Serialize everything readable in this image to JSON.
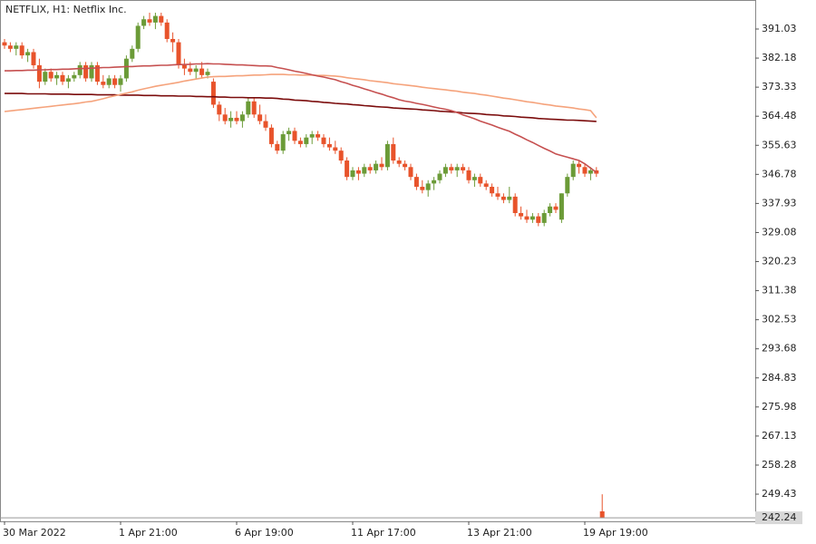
{
  "chart_data": {
    "type": "candlestick",
    "title": "NETFLIX, H1:  Netflix Inc.",
    "categories": [
      "30 Mar 2022",
      null,
      null,
      null,
      null,
      null,
      null,
      null,
      null,
      null,
      null,
      null,
      null,
      null,
      null,
      null,
      null,
      null,
      null,
      null,
      "1 Apr 21:00",
      null,
      null,
      null,
      null,
      null,
      null,
      null,
      null,
      null,
      null,
      null,
      null,
      null,
      null,
      null,
      null,
      null,
      null,
      null,
      "6 Apr 19:00",
      null,
      null,
      null,
      null,
      null,
      null,
      null,
      null,
      null,
      null,
      null,
      null,
      null,
      null,
      null,
      null,
      null,
      null,
      null,
      "11 Apr 17:00",
      null,
      null,
      null,
      null,
      null,
      null,
      null,
      null,
      null,
      null,
      null,
      null,
      null,
      null,
      null,
      null,
      null,
      null,
      null,
      "13 Apr 21:00",
      null,
      null,
      null,
      null,
      null,
      null,
      null,
      null,
      null,
      null,
      null,
      null,
      null,
      null,
      null,
      null,
      null,
      null,
      null,
      "19 Apr 19:00",
      null,
      null,
      null
    ],
    "open": [
      387,
      386,
      385,
      386,
      383,
      384,
      380,
      375,
      378,
      376,
      377,
      375,
      376,
      377,
      380,
      376,
      380,
      375,
      374,
      376,
      374,
      376,
      382,
      385,
      392,
      394,
      393,
      395,
      393,
      388,
      387,
      380,
      379,
      378,
      379,
      377,
      375,
      368,
      365,
      363,
      364,
      363,
      365,
      369,
      365,
      363,
      361,
      356,
      354,
      359,
      360,
      357,
      356,
      358,
      359,
      358,
      356,
      355,
      354,
      351,
      346,
      348,
      347,
      349,
      348,
      350,
      349,
      356,
      351,
      350,
      349,
      346,
      343,
      342,
      344,
      345,
      347,
      349,
      348,
      349,
      348,
      345,
      346,
      344,
      343,
      341,
      340,
      339,
      340,
      335,
      334,
      333,
      334,
      332,
      335,
      337,
      333,
      341,
      346,
      350,
      349,
      347,
      348,
      244.2
    ],
    "high": [
      388,
      387,
      387,
      387,
      385,
      385,
      382,
      379,
      379,
      378,
      378,
      377,
      378,
      381,
      381,
      381,
      381,
      377,
      377,
      377,
      377,
      383,
      386,
      393,
      395,
      396,
      396,
      396,
      394,
      390,
      388,
      382,
      381,
      380,
      381,
      379,
      376,
      369,
      367,
      366,
      366,
      366,
      370,
      370,
      368,
      365,
      362,
      357,
      360,
      361,
      361,
      358,
      359,
      360,
      360,
      359,
      358,
      357,
      355,
      352,
      349,
      349,
      350,
      350,
      351,
      352,
      357,
      358,
      352,
      351,
      350,
      347,
      345,
      345,
      346,
      348,
      350,
      350,
      350,
      350,
      349,
      347,
      347,
      345,
      344,
      343,
      341,
      343,
      341,
      337,
      336,
      335,
      335,
      336,
      338,
      338,
      341,
      347,
      351,
      351,
      350,
      349,
      349,
      249.4
    ],
    "low": [
      385,
      384,
      383,
      382,
      381,
      379,
      373,
      374,
      375,
      374,
      374,
      373,
      375,
      376,
      375,
      375,
      374,
      373,
      373,
      373,
      372,
      375,
      381,
      384,
      391,
      392,
      391,
      392,
      387,
      384,
      379,
      377,
      377,
      376,
      376,
      376,
      367,
      363,
      362,
      361,
      362,
      361,
      364,
      364,
      362,
      360,
      355,
      353,
      353,
      357,
      356,
      355,
      355,
      356,
      357,
      355,
      354,
      353,
      350,
      345,
      345,
      345,
      346,
      347,
      347,
      348,
      348,
      350,
      349,
      348,
      345,
      342,
      341,
      340,
      342,
      344,
      346,
      347,
      346,
      347,
      344,
      343,
      343,
      342,
      340,
      339,
      338,
      338,
      334,
      333,
      332,
      332,
      331,
      331,
      334,
      335,
      332,
      340,
      345,
      347,
      346,
      345,
      346,
      242.2
    ],
    "close": [
      386,
      385,
      386,
      383,
      384,
      380,
      375,
      378,
      376,
      377,
      375,
      376,
      377,
      380,
      376,
      380,
      375,
      374,
      376,
      374,
      376,
      382,
      385,
      392,
      394,
      393,
      395,
      393,
      388,
      387,
      380,
      379,
      378,
      379,
      377,
      378,
      368,
      365,
      363,
      364,
      363,
      365,
      369,
      365,
      363,
      361,
      356,
      354,
      359,
      360,
      357,
      356,
      358,
      359,
      358,
      356,
      355,
      354,
      351,
      346,
      348,
      347,
      349,
      348,
      350,
      349,
      356,
      351,
      350,
      349,
      346,
      343,
      342,
      344,
      345,
      347,
      349,
      348,
      349,
      348,
      345,
      346,
      344,
      343,
      341,
      340,
      339,
      340,
      335,
      334,
      333,
      334,
      332,
      335,
      337,
      336,
      341,
      346,
      350,
      349,
      347,
      348,
      347,
      242.24
    ],
    "up_color": "#6b9b37",
    "down_color": "#e8532b",
    "lines": [
      {
        "color": "#7b0c0c",
        "values": [
          371.4,
          371.4,
          371.4,
          371.4,
          371.3,
          371.3,
          371.3,
          371.3,
          371.2,
          371.2,
          371.2,
          371.2,
          371.1,
          371.1,
          371.1,
          371.1,
          371.0,
          371.0,
          371.0,
          371.0,
          370.9,
          370.9,
          370.9,
          370.9,
          370.8,
          370.8,
          370.8,
          370.7,
          370.7,
          370.7,
          370.6,
          370.6,
          370.6,
          370.5,
          370.5,
          370.4,
          370.4,
          370.3,
          370.3,
          370.2,
          370.2,
          370.2,
          370.1,
          370.1,
          370.1,
          370.0,
          370.0,
          369.9,
          369.7,
          369.6,
          369.4,
          369.3,
          369.2,
          369.0,
          368.9,
          368.7,
          368.6,
          368.4,
          368.3,
          368.2,
          368.0,
          367.9,
          367.7,
          367.6,
          367.4,
          367.3,
          367.2,
          367.0,
          366.9,
          366.8,
          366.7,
          366.6,
          366.4,
          366.3,
          366.2,
          366.0,
          365.9,
          365.8,
          365.7,
          365.5,
          365.4,
          365.3,
          365.2,
          365.0,
          364.9,
          364.8,
          364.6,
          364.5,
          364.4,
          364.2,
          364.1,
          364.0,
          363.8,
          363.7,
          363.6,
          363.5,
          363.4,
          363.3,
          363.3,
          363.2,
          363.1,
          363.0,
          362.9,
          null
        ]
      },
      {
        "color": "#f5a37c",
        "values": [
          365.9,
          366.1,
          366.3,
          366.5,
          366.7,
          366.9,
          367.1,
          367.3,
          367.5,
          367.7,
          367.9,
          368.1,
          368.3,
          368.5,
          368.8,
          369.0,
          369.4,
          369.8,
          370.3,
          370.7,
          371.1,
          371.5,
          371.9,
          372.4,
          372.8,
          373.2,
          373.6,
          373.9,
          374.2,
          374.5,
          374.8,
          375.2,
          375.5,
          375.8,
          376.1,
          376.4,
          376.5,
          376.6,
          376.6,
          376.7,
          376.8,
          376.8,
          376.9,
          377.0,
          377.0,
          377.1,
          377.2,
          377.2,
          377.2,
          377.1,
          377.1,
          377.0,
          377.0,
          377.0,
          376.9,
          376.9,
          376.8,
          376.7,
          376.5,
          376.2,
          376.0,
          375.8,
          375.6,
          375.3,
          375.1,
          374.9,
          374.7,
          374.4,
          374.2,
          374.0,
          373.8,
          373.6,
          373.3,
          373.1,
          372.9,
          372.7,
          372.5,
          372.3,
          372.1,
          371.8,
          371.6,
          371.4,
          371.1,
          370.9,
          370.6,
          370.3,
          370.0,
          369.8,
          369.5,
          369.2,
          368.9,
          368.7,
          368.4,
          368.1,
          367.9,
          367.6,
          367.4,
          367.2,
          367.0,
          366.7,
          366.5,
          366.2,
          364.0,
          null
        ]
      },
      {
        "color": "#c65050",
        "values": [
          378.3,
          378.3,
          378.4,
          378.4,
          378.5,
          378.5,
          378.6,
          378.6,
          378.7,
          378.7,
          378.8,
          378.8,
          378.9,
          379.0,
          379.0,
          379.1,
          379.2,
          379.3,
          379.3,
          379.4,
          379.5,
          379.6,
          379.6,
          379.7,
          379.8,
          379.8,
          379.9,
          380.0,
          380.0,
          380.1,
          380.2,
          380.2,
          380.3,
          380.4,
          380.4,
          380.5,
          380.4,
          380.4,
          380.3,
          380.2,
          380.1,
          380.1,
          380.0,
          379.9,
          379.8,
          379.8,
          379.7,
          379.3,
          379.0,
          378.6,
          378.2,
          377.9,
          377.5,
          377.1,
          376.7,
          376.4,
          376.0,
          375.6,
          375.0,
          374.5,
          373.9,
          373.4,
          372.8,
          372.3,
          371.7,
          371.2,
          370.6,
          370.1,
          369.5,
          369.1,
          368.8,
          368.4,
          368.1,
          367.7,
          367.3,
          366.9,
          366.6,
          366.2,
          365.6,
          364.9,
          364.3,
          363.7,
          363.0,
          362.4,
          361.8,
          361.1,
          360.5,
          359.9,
          359.0,
          358.2,
          357.3,
          356.5,
          355.6,
          354.7,
          353.9,
          353.0,
          352.5,
          352.0,
          351.5,
          351.0,
          350.0,
          348.7,
          347.4,
          null
        ]
      }
    ],
    "last_price": 242.24,
    "ylim": [
      241.16,
      399.31
    ],
    "yticks": [
      391.03,
      382.18,
      373.33,
      364.48,
      355.63,
      346.78,
      337.93,
      329.08,
      320.23,
      311.38,
      302.53,
      293.68,
      284.83,
      275.98,
      267.13,
      258.28,
      249.43
    ]
  }
}
